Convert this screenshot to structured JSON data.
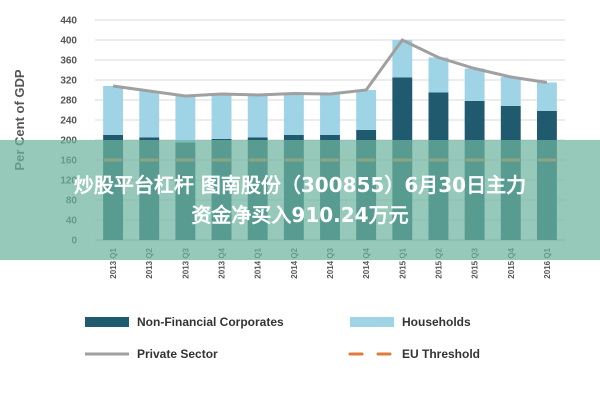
{
  "chart_data": {
    "type": "bar",
    "stacked": true,
    "categories": [
      "2013 Q1",
      "2013 Q2",
      "2013 Q3",
      "2013 Q4",
      "2014 Q1",
      "2014 Q2",
      "2014 Q3",
      "2014 Q4",
      "2015 Q1",
      "2015 Q2",
      "2015 Q3",
      "2015 Q4",
      "2016 Q1"
    ],
    "series": [
      {
        "name": "Non-Financial Corporates",
        "type": "bar",
        "color": "#1f5a6e",
        "values": [
          210,
          205,
          195,
          202,
          205,
          210,
          210,
          220,
          325,
          295,
          278,
          268,
          258
        ]
      },
      {
        "name": "Households",
        "type": "bar",
        "color": "#9fd3e6",
        "values": [
          98,
          93,
          93,
          90,
          85,
          83,
          82,
          80,
          75,
          70,
          65,
          58,
          57
        ]
      },
      {
        "name": "Private Sector",
        "type": "line",
        "color": "#a0a0a0",
        "values": [
          308,
          298,
          288,
          292,
          290,
          293,
          292,
          300,
          400,
          365,
          343,
          326,
          315
        ]
      },
      {
        "name": "EU Threshold",
        "type": "line",
        "style": "dashed",
        "color": "#e07b39",
        "values": [
          160,
          160,
          160,
          160,
          160,
          160,
          160,
          160,
          160,
          160,
          160,
          160,
          160
        ]
      }
    ],
    "y_ticks": [
      "0",
      "40",
      "80",
      "120",
      "160",
      "200",
      "240",
      "280",
      "320",
      "360",
      "400",
      "440"
    ],
    "ylim": [
      0,
      440
    ],
    "ylabel": "Per Cent of GDP",
    "xlabel": "",
    "title": "",
    "grid": true,
    "legend_position": "bottom"
  },
  "overlay": {
    "line1": "炒股平台杠杆 图南股份（300855）6月30日主力",
    "line2": "资金净买入910.24万元",
    "color": "#6eb4a0"
  }
}
